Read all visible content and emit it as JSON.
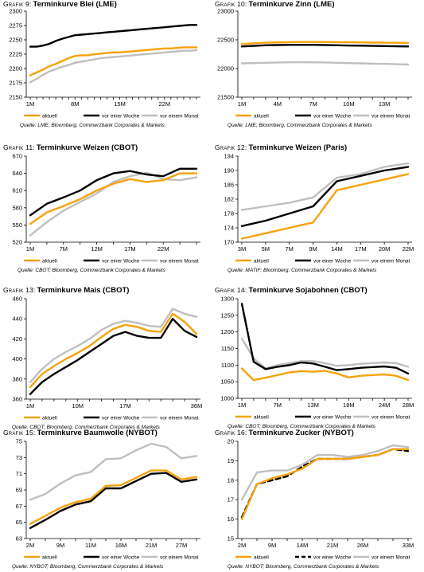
{
  "chart_data": [
    {
      "number": "Grafik 9:",
      "title": "Terminkurve Blei (LME)",
      "type": "line",
      "categories": [
        "1M",
        "",
        "",
        "",
        "",
        "",
        "",
        "8M",
        "",
        "",
        "",
        "",
        "",
        "",
        "15M",
        "",
        "",
        "",
        "",
        "",
        "",
        "22M",
        "",
        "",
        "",
        "",
        ""
      ],
      "x_ticks": [
        "1M",
        "8M",
        "15M",
        "22M"
      ],
      "ylim": [
        2150,
        2300
      ],
      "y_ticks": [
        2150,
        2175,
        2200,
        2225,
        2250,
        2275,
        2300
      ],
      "series": [
        {
          "name": "aktuell",
          "color": "#F7A20B",
          "dash": false,
          "values": [
            2188,
            2193,
            2198,
            2204,
            2208,
            2213,
            2218,
            2222,
            2223,
            2223,
            2225,
            2226,
            2227,
            2228,
            2228,
            2229,
            2230,
            2231,
            2232,
            2233,
            2234,
            2235,
            2235,
            2236,
            2237,
            2237,
            2237
          ]
        },
        {
          "name": "vor einer Woche",
          "color": "#000000",
          "dash": false,
          "values": [
            2238,
            2238,
            2240,
            2243,
            2248,
            2252,
            2255,
            2258,
            2259,
            2260,
            2261,
            2262,
            2263,
            2264,
            2265,
            2266,
            2267,
            2268,
            2269,
            2270,
            2271,
            2272,
            2273,
            2274,
            2275,
            2276,
            2276
          ]
        },
        {
          "name": "vor einem Monat",
          "color": "#BFBFBF",
          "dash": false,
          "values": [
            2176,
            2182,
            2189,
            2195,
            2199,
            2203,
            2206,
            2210,
            2212,
            2214,
            2216,
            2218,
            2219,
            2220,
            2221,
            2222,
            2223,
            2224,
            2225,
            2226,
            2227,
            2228,
            2229,
            2230,
            2231,
            2231,
            2232
          ]
        }
      ],
      "source": "Quelle: LME; Bloomberg, Commerzbank Corporates & Markets"
    },
    {
      "number": "Grafik 10:",
      "title": "Terminkurve Zinn (LME)",
      "type": "line",
      "categories": [
        "1M",
        "",
        "",
        "4M",
        "",
        "",
        "7M",
        "",
        "",
        "10M",
        "",
        "",
        "13M",
        "",
        ""
      ],
      "x_ticks": [
        "1M",
        "4M",
        "7M",
        "10M",
        "13M"
      ],
      "ylim": [
        21500,
        23000
      ],
      "y_ticks": [
        21500,
        22000,
        22500,
        23000
      ],
      "series": [
        {
          "name": "aktuell",
          "color": "#F7A20B",
          "dash": false,
          "values": [
            22425,
            22440,
            22450,
            22455,
            22460,
            22462,
            22463,
            22462,
            22460,
            22458,
            22455,
            22452,
            22450,
            22448,
            22446
          ]
        },
        {
          "name": "vor einer Woche",
          "color": "#000000",
          "dash": false,
          "values": [
            22385,
            22395,
            22405,
            22410,
            22412,
            22413,
            22412,
            22410,
            22405,
            22400,
            22398,
            22395,
            22392,
            22388,
            22385
          ]
        },
        {
          "name": "vor einem Monat",
          "color": "#BFBFBF",
          "dash": false,
          "values": [
            22090,
            22095,
            22100,
            22105,
            22108,
            22110,
            22108,
            22105,
            22100,
            22095,
            22090,
            22085,
            22080,
            22075,
            22070
          ]
        }
      ],
      "source": "Quelle: LME; Bloomberg, Commerzbank Corporates & Markets"
    },
    {
      "number": "Grafik 11:",
      "title": "Terminkurve Weizen (CBOT)",
      "type": "line",
      "categories": [
        "1M",
        "",
        "7M",
        "",
        "12M",
        "",
        "17M",
        "",
        "22M",
        "",
        ""
      ],
      "x_ticks": [
        "1M",
        "7M",
        "12M",
        "17M",
        "22M"
      ],
      "ylim": [
        520,
        670
      ],
      "y_ticks": [
        520,
        550,
        580,
        610,
        640,
        670
      ],
      "series": [
        {
          "name": "aktuell",
          "color": "#F7A20B",
          "dash": false,
          "values": [
            552,
            572,
            583,
            595,
            610,
            622,
            630,
            625,
            628,
            640,
            640
          ]
        },
        {
          "name": "vor einer Woche",
          "color": "#000000",
          "dash": false,
          "values": [
            567,
            587,
            598,
            610,
            628,
            640,
            644,
            638,
            635,
            648,
            648
          ]
        },
        {
          "name": "vor einem Monat",
          "color": "#BFBFBF",
          "dash": false,
          "values": [
            532,
            555,
            575,
            590,
            605,
            625,
            635,
            641,
            630,
            628,
            633
          ]
        }
      ],
      "source": "Quelle: CBOT; Bloomberg, Commerzbank Corporates & Markets"
    },
    {
      "number": "Grafik 12:",
      "title": "Terminkurve Weizen (Paris)",
      "type": "line",
      "categories": [
        "3M",
        "5M",
        "7M",
        "9M",
        "14M",
        "17M",
        "20M",
        "22M"
      ],
      "x_ticks": [
        "3M",
        "5M",
        "7M",
        "9M",
        "14M",
        "17M",
        "20M",
        "22M"
      ],
      "ylim": [
        170,
        194
      ],
      "y_ticks": [
        170,
        174,
        178,
        182,
        186,
        190,
        194
      ],
      "series": [
        {
          "name": "aktuell",
          "color": "#F7A20B",
          "dash": false,
          "values": [
            171,
            172.5,
            174,
            175.5,
            184.5,
            186,
            187.5,
            189
          ]
        },
        {
          "name": "vor einer Woche",
          "color": "#000000",
          "dash": false,
          "values": [
            174.5,
            176,
            178,
            180,
            187,
            188.5,
            190,
            191
          ]
        },
        {
          "name": "vor einem Monat",
          "color": "#BFBFBF",
          "dash": false,
          "values": [
            179,
            180,
            181,
            182.5,
            188,
            189,
            191,
            192
          ]
        }
      ],
      "source": "Quelle: MATIF; Bloomberg, Commerzbank Corporates & Markets"
    },
    {
      "number": "Grafik 13:",
      "title": "Terminkurve Mais (CBOT)",
      "type": "line",
      "categories": [
        "1M",
        "",
        "",
        "",
        "10M",
        "",
        "",
        "",
        "17M",
        "",
        "",
        "",
        "",
        "",
        "36M"
      ],
      "x_ticks": [
        "1M",
        "10M",
        "17M",
        "36M"
      ],
      "ylim": [
        360,
        460
      ],
      "y_ticks": [
        360,
        380,
        400,
        420,
        440,
        460
      ],
      "series": [
        {
          "name": "aktuell",
          "color": "#F7A20B",
          "dash": false,
          "values": [
            372,
            385,
            393,
            400,
            406,
            413,
            422,
            430,
            434,
            432,
            428,
            427,
            445,
            437,
            425
          ]
        },
        {
          "name": "vor einer Woche",
          "color": "#000000",
          "dash": false,
          "values": [
            365,
            377,
            385,
            392,
            399,
            407,
            415,
            423,
            427,
            423,
            421,
            421,
            440,
            428,
            422
          ]
        },
        {
          "name": "vor einem Monat",
          "color": "#BFBFBF",
          "dash": false,
          "values": [
            377,
            390,
            400,
            407,
            413,
            420,
            429,
            435,
            438,
            436,
            433,
            432,
            450,
            445,
            442
          ]
        }
      ],
      "source": "Quelle: CBOT; Bloomberg, Commerzbank Corporates & Markets"
    },
    {
      "number": "Grafik 14:",
      "title": "Terminkurve Sojabohnen (CBOT)",
      "type": "line",
      "categories": [
        "1M",
        "",
        "",
        "7M",
        "",
        "",
        "13M",
        "",
        "",
        "18M",
        "",
        "",
        "24M",
        "",
        "28M"
      ],
      "x_ticks": [
        "1M",
        "7M",
        "13M",
        "18M",
        "24M",
        "28M"
      ],
      "ylim": [
        1000,
        1300
      ],
      "y_ticks": [
        1000,
        1050,
        1100,
        1150,
        1200,
        1250,
        1300
      ],
      "series": [
        {
          "name": "aktuell",
          "color": "#F7A20B",
          "dash": false,
          "values": [
            1090,
            1055,
            1062,
            1070,
            1078,
            1082,
            1080,
            1083,
            1075,
            1063,
            1068,
            1070,
            1072,
            1068,
            1055
          ]
        },
        {
          "name": "vor einer Woche",
          "color": "#000000",
          "dash": false,
          "values": [
            1285,
            1110,
            1088,
            1095,
            1100,
            1108,
            1105,
            1095,
            1085,
            1088,
            1092,
            1094,
            1096,
            1092,
            1075
          ]
        },
        {
          "name": "vor einem Monat",
          "color": "#BFBFBF",
          "dash": false,
          "values": [
            1180,
            1120,
            1090,
            1100,
            1106,
            1112,
            1112,
            1106,
            1098,
            1100,
            1104,
            1106,
            1108,
            1106,
            1095
          ]
        }
      ],
      "source": "Quelle: CBOT; Bloomberg, Commerzbank Corporates & Markets"
    },
    {
      "number": "Grafik 15:",
      "title": "Terminkurve Baumwolle (NYBOT)",
      "type": "line",
      "categories": [
        "2M",
        "",
        "9M",
        "",
        "11M",
        "",
        "16M",
        "",
        "21M",
        "",
        "27M",
        ""
      ],
      "x_ticks": [
        "2M",
        "9M",
        "11M",
        "16M",
        "21M",
        "27M"
      ],
      "ylim": [
        63,
        75
      ],
      "y_ticks": [
        63,
        65,
        67,
        69,
        71,
        73,
        75
      ],
      "series": [
        {
          "name": "aktuell",
          "color": "#F7A20B",
          "dash": false,
          "values": [
            64.8,
            65.8,
            66.8,
            67.5,
            67.9,
            69.5,
            69.6,
            70.5,
            71.4,
            71.4,
            70.3,
            70.6
          ]
        },
        {
          "name": "vor einer Woche",
          "color": "#000000",
          "dash": false,
          "values": [
            64.3,
            65.3,
            66.4,
            67.2,
            67.6,
            69.2,
            69.2,
            70.1,
            71.0,
            71.1,
            70.0,
            70.3
          ]
        },
        {
          "name": "vor einem Monat",
          "color": "#BFBFBF",
          "dash": false,
          "values": [
            67.8,
            68.5,
            69.8,
            70.8,
            71.2,
            72.8,
            72.9,
            73.9,
            74.7,
            74.3,
            72.9,
            73.2
          ]
        }
      ],
      "source": "Quelle: NYBOT; Bloomberg, Commerzbank Corporates & Markets"
    },
    {
      "number": "Grafik 16:",
      "title": "Terminkurve Zucker (NYBOT)",
      "type": "line",
      "categories": [
        "2M",
        "",
        "9M",
        "",
        "14M",
        "",
        "21M",
        "",
        "26M",
        "",
        "",
        "33M"
      ],
      "x_ticks": [
        "2M",
        "9M",
        "14M",
        "21M",
        "26M",
        "33M"
      ],
      "ylim": [
        15,
        20
      ],
      "y_ticks": [
        15,
        16,
        17,
        18,
        19,
        20
      ],
      "series": [
        {
          "name": "aktuell",
          "color": "#F7A20B",
          "dash": false,
          "values": [
            16.0,
            17.8,
            18.1,
            18.3,
            18.6,
            19.1,
            19.1,
            19.1,
            19.2,
            19.3,
            19.6,
            19.6
          ]
        },
        {
          "name": "vor einer Woche",
          "color": "#000000",
          "dash": true,
          "values": [
            16.1,
            17.8,
            18.0,
            18.2,
            18.7,
            19.1,
            19.1,
            19.1,
            19.2,
            19.3,
            19.6,
            19.5
          ]
        },
        {
          "name": "vor einem Monat",
          "color": "#BFBFBF",
          "dash": false,
          "values": [
            17.0,
            18.4,
            18.5,
            18.5,
            18.8,
            19.3,
            19.3,
            19.2,
            19.3,
            19.5,
            19.8,
            19.7
          ]
        }
      ],
      "source": "Quelle: NYBOT; Bloomberg, Commerzbank Corporates & Markets"
    }
  ]
}
